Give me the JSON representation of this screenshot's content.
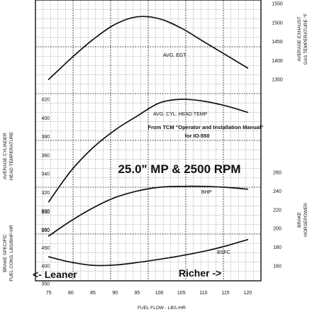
{
  "chart_data": {
    "type": "line",
    "title": "25.0\" MP & 2500 RPM",
    "source_note": [
      "From TCM \"Operator and Installation Manual\"",
      "for IO-550"
    ],
    "hints": {
      "leaner": "<- Leaner",
      "richer": "Richer ->"
    },
    "xlabel": "FUEL FLOW - LBS./HR",
    "xlim": [
      72,
      123
    ],
    "x_ticks": [
      "75",
      "80",
      "85",
      "90",
      "95",
      "100",
      "105",
      "110",
      "115",
      "120"
    ],
    "left_axis_labels": {
      "cht": [
        "AVERAGE CYLINDER",
        "HEAD TEMPERATURE"
      ],
      "bsfc": [
        "BRAKE SPECIFIC",
        "FUEL CONS. LBS/BHP-HR"
      ]
    },
    "right_axis_labels": {
      "egt": [
        "AVERAGE EXHAUST",
        "GAS TEMPERATURE °F"
      ],
      "bhp": [
        "BRAKE",
        "HORSEPOWER"
      ]
    },
    "cht_ticks": [
      "280",
      "300",
      "320",
      "340",
      "360",
      "380",
      "400",
      "420"
    ],
    "bsfc_ticks": [
      "350",
      "400",
      "450",
      "500",
      "550"
    ],
    "egt_ticks": [
      "1350",
      "1400",
      "1450",
      "1500",
      "1550"
    ],
    "bhp_ticks": [
      "160",
      "180",
      "200",
      "220",
      "240",
      "260"
    ],
    "series": [
      {
        "name": "AVG. EGT",
        "axis": "egt",
        "x": [
          75,
          80,
          85,
          90,
          95,
          100,
          105,
          110,
          115,
          120
        ],
        "y": [
          1350,
          1405,
          1455,
          1495,
          1515,
          1510,
          1485,
          1450,
          1415,
          1380
        ]
      },
      {
        "name": "AVG. CYL. HEAD TEMP",
        "axis": "cht",
        "x": [
          75,
          80,
          85,
          90,
          95,
          100,
          105,
          110,
          115,
          120
        ],
        "y": [
          310,
          343,
          368,
          387,
          402,
          416,
          420,
          418,
          413,
          406
        ]
      },
      {
        "name": "BHP",
        "axis": "bhp",
        "x": [
          75,
          80,
          85,
          90,
          95,
          100,
          105,
          110,
          115,
          120
        ],
        "y": [
          192,
          208,
          222,
          233,
          240,
          244,
          245,
          245,
          244,
          242
        ]
      },
      {
        "name": "BSFC",
        "axis": "bsfc",
        "x": [
          75,
          80,
          85,
          90,
          95,
          100,
          105,
          110,
          115,
          120
        ],
        "y": [
          425,
          410,
          401,
          402,
          409,
          418,
          428,
          440,
          455,
          473
        ]
      }
    ]
  }
}
